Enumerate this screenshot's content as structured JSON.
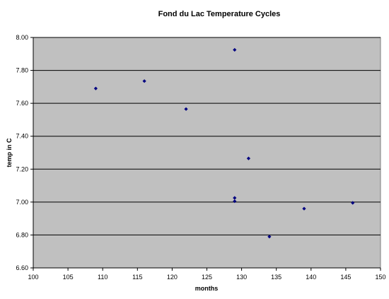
{
  "chart_data": {
    "type": "scatter",
    "title": "Fond du Lac Temperature Cycles",
    "xlabel": "months",
    "ylabel": "temp in C",
    "xlim": [
      100,
      150
    ],
    "ylim": [
      6.6,
      8.0
    ],
    "x_ticks": [
      100,
      105,
      110,
      115,
      120,
      125,
      130,
      135,
      140,
      145,
      150
    ],
    "y_ticks": [
      "6.60",
      "6.80",
      "7.00",
      "7.20",
      "7.40",
      "7.60",
      "7.80",
      "8.00"
    ],
    "grid": "horizontal",
    "legend": "none",
    "plot_background": "#c0c0c0",
    "marker_color": "#000080",
    "marker": "diamond",
    "points": [
      {
        "x": 109,
        "y": 7.69
      },
      {
        "x": 116,
        "y": 7.735
      },
      {
        "x": 122,
        "y": 7.565
      },
      {
        "x": 129,
        "y": 7.925
      },
      {
        "x": 131,
        "y": 7.265
      },
      {
        "x": 129,
        "y": 7.025
      },
      {
        "x": 129,
        "y": 7.005
      },
      {
        "x": 134,
        "y": 6.79
      },
      {
        "x": 139,
        "y": 6.96
      },
      {
        "x": 146,
        "y": 6.995
      }
    ]
  }
}
